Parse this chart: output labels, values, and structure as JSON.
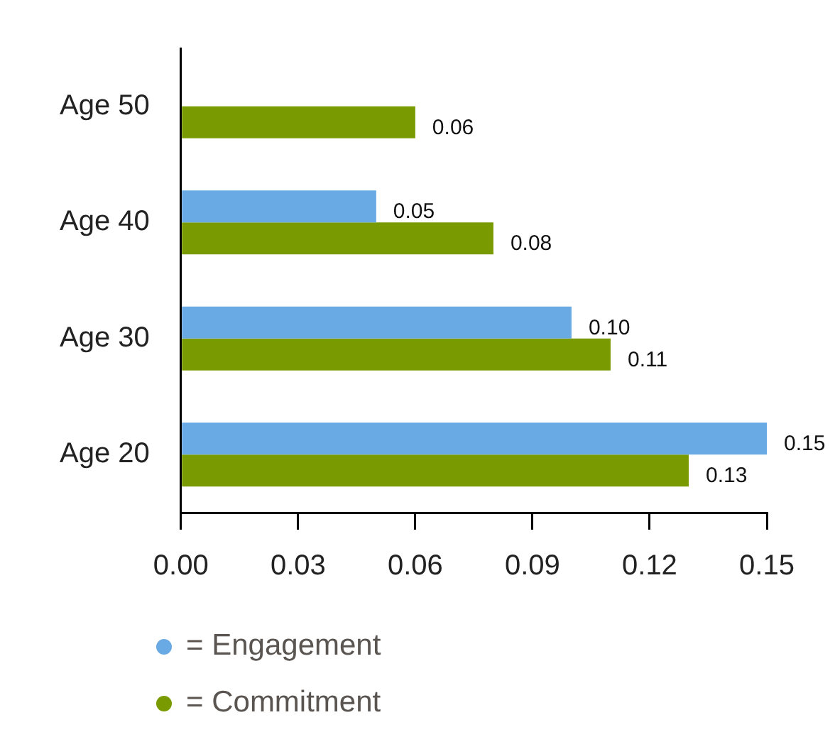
{
  "chart_data": {
    "type": "bar",
    "orientation": "horizontal",
    "categories": [
      "Age 50",
      "Age 40",
      "Age 30",
      "Age 20"
    ],
    "series": [
      {
        "name": "= Engagement",
        "color": "#6aaae4",
        "values": [
          null,
          0.05,
          0.1,
          0.15
        ],
        "value_labels": [
          null,
          "0.05",
          "0.10",
          "0.15"
        ]
      },
      {
        "name": "= Commitment",
        "color": "#7a9a01",
        "values": [
          0.06,
          0.08,
          0.11,
          0.13
        ],
        "value_labels": [
          "0.06",
          "0.08",
          "0.11",
          "0.13"
        ]
      }
    ],
    "xlim": [
      0,
      0.15
    ],
    "xticks": [
      {
        "value": 0,
        "label": "0.00"
      },
      0.03,
      0.06,
      0.09,
      0.12,
      0.15
    ],
    "grid": false,
    "legend": "bottom"
  }
}
